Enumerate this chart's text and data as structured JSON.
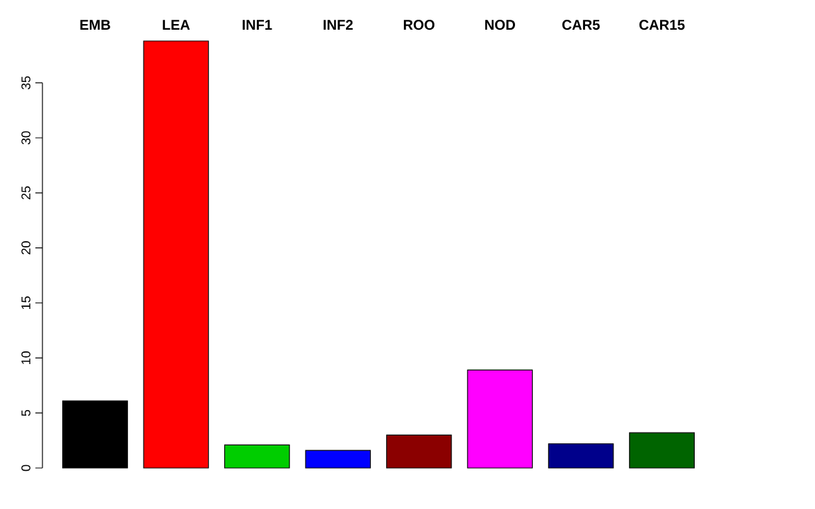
{
  "chart_data": {
    "type": "bar",
    "categories": [
      "EMB",
      "LEA",
      "INF1",
      "INF2",
      "ROO",
      "NOD",
      "CAR5",
      "CAR15"
    ],
    "values": [
      6.1,
      38.8,
      2.1,
      1.6,
      3.0,
      8.9,
      2.2,
      3.2
    ],
    "colors": [
      "#000000",
      "#ff0000",
      "#00cd00",
      "#0000ff",
      "#8b0000",
      "#ff00ff",
      "#00008b",
      "#006400"
    ],
    "ylim": [
      0,
      38.8
    ],
    "yticks": [
      0,
      5,
      10,
      15,
      20,
      25,
      30,
      35
    ]
  }
}
